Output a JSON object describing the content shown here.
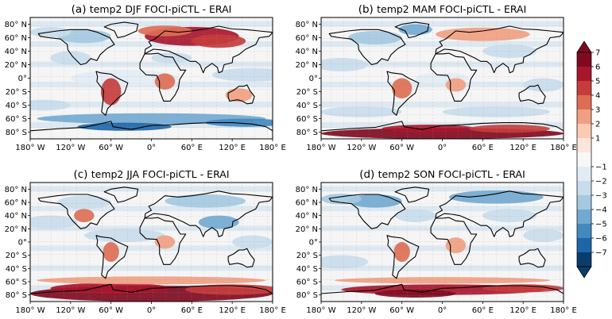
{
  "chart_data": {
    "type": "heatmap",
    "panels": [
      {
        "letter": "(a)",
        "title": "temp2 DJF FOCI-piCTL - ERAI"
      },
      {
        "letter": "(b)",
        "title": "temp2 MAM FOCI-piCTL - ERAI"
      },
      {
        "letter": "(c)",
        "title": "temp2 JJA FOCI-piCTL - ERAI"
      },
      {
        "letter": "(d)",
        "title": "temp2 SON FOCI-piCTL - ERAI"
      }
    ],
    "x_ticks": [
      "180° W",
      "120° W",
      "60° W",
      "0°",
      "60° E",
      "120° E",
      "180° E"
    ],
    "y_ticks": [
      "80° N",
      "60° N",
      "40° N",
      "20° N",
      "0°",
      "20° S",
      "40° S",
      "60° S",
      "80° S"
    ],
    "xlim": [
      -180,
      180
    ],
    "ylim": [
      -90,
      90
    ],
    "grid": true,
    "colorbar": {
      "levels": [
        -7,
        -6,
        -5,
        -4,
        -3,
        -2,
        -1,
        1,
        2,
        3,
        4,
        5,
        6,
        7
      ],
      "tick_labels": [
        "7",
        "6",
        "5",
        "4",
        "3",
        "2",
        "1",
        "−1",
        "−2",
        "−3",
        "−4",
        "−5",
        "−6",
        "−7"
      ],
      "extend": "both",
      "colors_top_to_bottom": [
        "#7f0a1f",
        "#a8162d",
        "#c63c3c",
        "#dd6e55",
        "#f0a082",
        "#fbcab2",
        "#fbe6dc",
        "#f7f7f7",
        "#e3ecf4",
        "#c9dcec",
        "#a4c9e1",
        "#72a9d0",
        "#4389bf",
        "#1f66a9",
        "#0a3d6b"
      ]
    },
    "anomaly_features": [
      {
        "panel": "(a)",
        "region": "Siberia / Arctic Eurasia",
        "sign": "warm",
        "magnitude": 6
      },
      {
        "panel": "(a)",
        "region": "Antarctic coast",
        "sign": "cold",
        "magnitude": -4
      },
      {
        "panel": "(b)",
        "region": "Antarctica",
        "sign": "warm",
        "magnitude": 7
      },
      {
        "panel": "(b)",
        "region": "Arctic Eurasia",
        "sign": "warm",
        "magnitude": 4
      },
      {
        "panel": "(c)",
        "region": "Antarctica",
        "sign": "warm",
        "magnitude": 7
      },
      {
        "panel": "(c)",
        "region": "Southern Ocean",
        "sign": "warm",
        "magnitude": 3
      },
      {
        "panel": "(d)",
        "region": "Antarctica",
        "sign": "warm",
        "magnitude": 6
      },
      {
        "panel": "(d)",
        "region": "Northern high latitudes",
        "sign": "cold",
        "magnitude": -3
      }
    ]
  }
}
